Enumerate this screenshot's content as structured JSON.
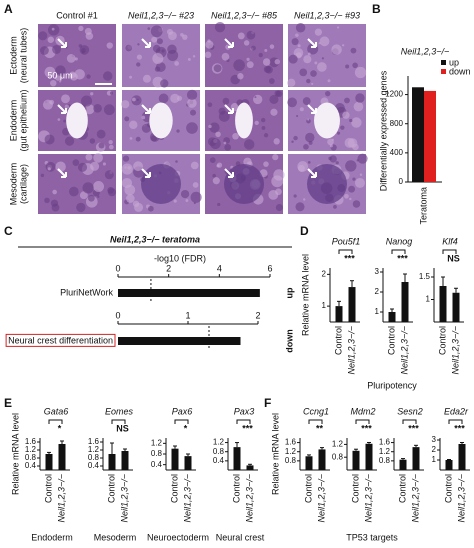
{
  "panel_labels": [
    "A",
    "B",
    "C",
    "D",
    "E",
    "F"
  ],
  "histology": {
    "columns": [
      "Control #1",
      "Neil1,2,3−/− #23",
      "Neil1,2,3−/− #85",
      "Neil1,2,3−/− #93"
    ],
    "rows": [
      [
        "Ectoderm",
        "(neural tubes)"
      ],
      [
        "Endoderm",
        "(gut epithelium)"
      ],
      [
        "Mesoderm",
        "(cartilage)"
      ]
    ],
    "scale_bar": "50 μm"
  },
  "group_labels": [
    "Pluripotency",
    "TP53 targets"
  ],
  "chart_data": [
    {
      "type": "grouped-bar",
      "title": "Neil1,2,3−/−",
      "ylabel": "Differentially expressed genes",
      "categories": [
        "Teratoma"
      ],
      "series": [
        {
          "name": "up",
          "color": "#111111",
          "values": [
            1300
          ]
        },
        {
          "name": "down",
          "color": "#e0201e",
          "values": [
            1250
          ]
        }
      ],
      "ylim": [
        0,
        1400
      ],
      "yticks": [
        0,
        400,
        800,
        1200
      ]
    },
    {
      "type": "hbar",
      "title": "Neil1,2,3−/− teratoma",
      "xlabel": "-log10 (FDR)",
      "direction": "up",
      "categories": [
        "PluriNetWork"
      ],
      "values": [
        5.6
      ],
      "xlim": [
        0,
        6
      ],
      "xticks": [
        0,
        2,
        4,
        6
      ],
      "threshold": 1.3
    },
    {
      "type": "hbar",
      "direction": "down",
      "categories": [
        "Neural crest differentiation"
      ],
      "values": [
        1.75
      ],
      "xlim": [
        0,
        2
      ],
      "xticks": [
        0,
        1,
        2
      ],
      "threshold": 1.3
    },
    {
      "type": "bar",
      "title": "Pou5f1",
      "ylabel": "Relative mRNA level",
      "categories": [
        "Control",
        "Neil1,2,3−/−"
      ],
      "values": [
        1,
        1.6
      ],
      "errors": [
        0.15,
        0.2
      ],
      "significance": "***",
      "ylim": [
        0.5,
        2.2
      ],
      "yticks": [
        1,
        2
      ]
    },
    {
      "type": "bar",
      "title": "Nanog",
      "categories": [
        "Control",
        "Neil1,2,3−/−"
      ],
      "values": [
        1,
        2.5
      ],
      "errors": [
        0.15,
        0.4
      ],
      "significance": "***",
      "ylim": [
        0.5,
        3.2
      ],
      "yticks": [
        1,
        2,
        3
      ]
    },
    {
      "type": "bar",
      "title": "Klf4",
      "categories": [
        "Control",
        "Neil1,2,3−/−"
      ],
      "values": [
        1.3,
        1.15
      ],
      "errors": [
        0.2,
        0.1
      ],
      "significance": "NS",
      "ylim": [
        0.5,
        1.7
      ],
      "yticks": [
        1,
        1.5
      ]
    },
    {
      "type": "bar",
      "title": "Gata6",
      "ylabel": "Relative mRNA level",
      "xlabel": "Endoderm",
      "categories": [
        "Control",
        "Neil1,2,3−/−"
      ],
      "values": [
        1,
        1.5
      ],
      "errors": [
        0.08,
        0.15
      ],
      "significance": "*",
      "ylim": [
        0.2,
        1.8
      ],
      "yticks": [
        0.4,
        0.8,
        1.2,
        1.6
      ]
    },
    {
      "type": "bar",
      "title": "Eomes",
      "xlabel": "Mesoderm",
      "categories": [
        "Control",
        "Neil1,2,3−/−"
      ],
      "values": [
        1,
        1.15
      ],
      "errors": [
        0.55,
        0.1
      ],
      "significance": "NS",
      "ylim": [
        0.2,
        1.8
      ],
      "yticks": [
        0.4,
        0.8,
        1.2,
        1.6
      ]
    },
    {
      "type": "bar",
      "title": "Pax6",
      "xlabel": "Neuroectoderm",
      "categories": [
        "Control",
        "Neil1,2,3−/−"
      ],
      "values": [
        1,
        0.72
      ],
      "errors": [
        0.1,
        0.08
      ],
      "significance": "*",
      "ylim": [
        0.2,
        1.4
      ],
      "yticks": [
        0.4,
        0.8,
        1.2
      ]
    },
    {
      "type": "bar",
      "title": "Pax3",
      "xlabel": "Neural crest",
      "categories": [
        "Control",
        "Neil1,2,3−/−"
      ],
      "values": [
        1,
        0.2
      ],
      "errors": [
        0.2,
        0.05
      ],
      "significance": "***",
      "ylim": [
        0,
        1.4
      ],
      "yticks": [
        0.4,
        0.8,
        1.2
      ]
    },
    {
      "type": "bar",
      "title": "Ccng1",
      "ylabel": "Relative mRNA level",
      "categories": [
        "Control",
        "Neil1,2,3−/−"
      ],
      "values": [
        1,
        1.3
      ],
      "errors": [
        0.06,
        0.08
      ],
      "significance": "**",
      "ylim": [
        0.4,
        1.8
      ],
      "yticks": [
        0.8,
        1.2,
        1.6
      ]
    },
    {
      "type": "bar",
      "title": "Mdm2",
      "categories": [
        "Control",
        "Neil1,2,3−/−"
      ],
      "values": [
        1,
        1.22
      ],
      "errors": [
        0.05,
        0.04
      ],
      "significance": "***",
      "ylim": [
        0.4,
        1.4
      ],
      "yticks": [
        0.8,
        1.2
      ]
    },
    {
      "type": "bar",
      "title": "Sesn2",
      "categories": [
        "Control",
        "Neil1,2,3−/−"
      ],
      "values": [
        0.85,
        1.4
      ],
      "errors": [
        0.05,
        0.08
      ],
      "significance": "***",
      "ylim": [
        0.4,
        1.8
      ],
      "yticks": [
        0.8,
        1.2,
        1.6
      ]
    },
    {
      "type": "bar",
      "title": "Eda2r",
      "categories": [
        "Control",
        "Neil1,2,3−/−"
      ],
      "values": [
        1,
        2.6
      ],
      "errors": [
        0.05,
        0.15
      ],
      "significance": "***",
      "ylim": [
        0,
        3.2
      ],
      "yticks": [
        1,
        2,
        3
      ]
    }
  ]
}
